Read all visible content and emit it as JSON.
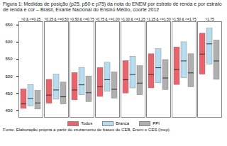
{
  "chart_data": {
    "type": "box",
    "title": "Figura 1: Medidas de posição (p25, p50 e p75) da nota do ENEM por estrato de renda e por estrato de renda e cor – Brasil, Exame Nacional do Ensino Médio, coorte 2012",
    "source": "Fonte: Elaboração própria a partir do cruzamento de bases do CEB, Enem e CES (Inep).",
    "categories": [
      ">0 & <=0.25",
      ">0.25 & <=0.50",
      ">0.50 & <=0.75",
      ">0.75 & <=1.00",
      ">1.00 & <=1.25",
      ">1.25 & <=1.50",
      ">1.50 & <=1.75",
      ">1.75"
    ],
    "series": [
      {
        "name": "Todos",
        "color": "#e8636b",
        "p25": [
          405,
          420,
          430,
          440,
          450,
          465,
          475,
          505
        ],
        "p50": [
          420,
          445,
          460,
          470,
          490,
          505,
          520,
          565
        ],
        "p75": [
          462,
          490,
          510,
          525,
          545,
          565,
          585,
          625
        ]
      },
      {
        "name": "Branca",
        "color": "#b8dcef",
        "p25": [
          412,
          432,
          445,
          455,
          465,
          480,
          495,
          535
        ],
        "p50": [
          435,
          460,
          475,
          490,
          505,
          525,
          545,
          595
        ],
        "p75": [
          475,
          505,
          525,
          540,
          558,
          580,
          600,
          640
        ]
      },
      {
        "name": "PPI",
        "color": "#b0b0b0",
        "p25": [
          403,
          418,
          425,
          435,
          445,
          460,
          468,
          490
        ],
        "p50": [
          422,
          440,
          452,
          462,
          480,
          495,
          510,
          545
        ],
        "p75": [
          458,
          482,
          500,
          512,
          530,
          548,
          565,
          605
        ]
      }
    ],
    "ylim": [
      380,
      660
    ],
    "yticks": [
      400,
      450,
      500,
      550,
      600,
      650
    ],
    "grid": false,
    "legend": "bottom"
  }
}
